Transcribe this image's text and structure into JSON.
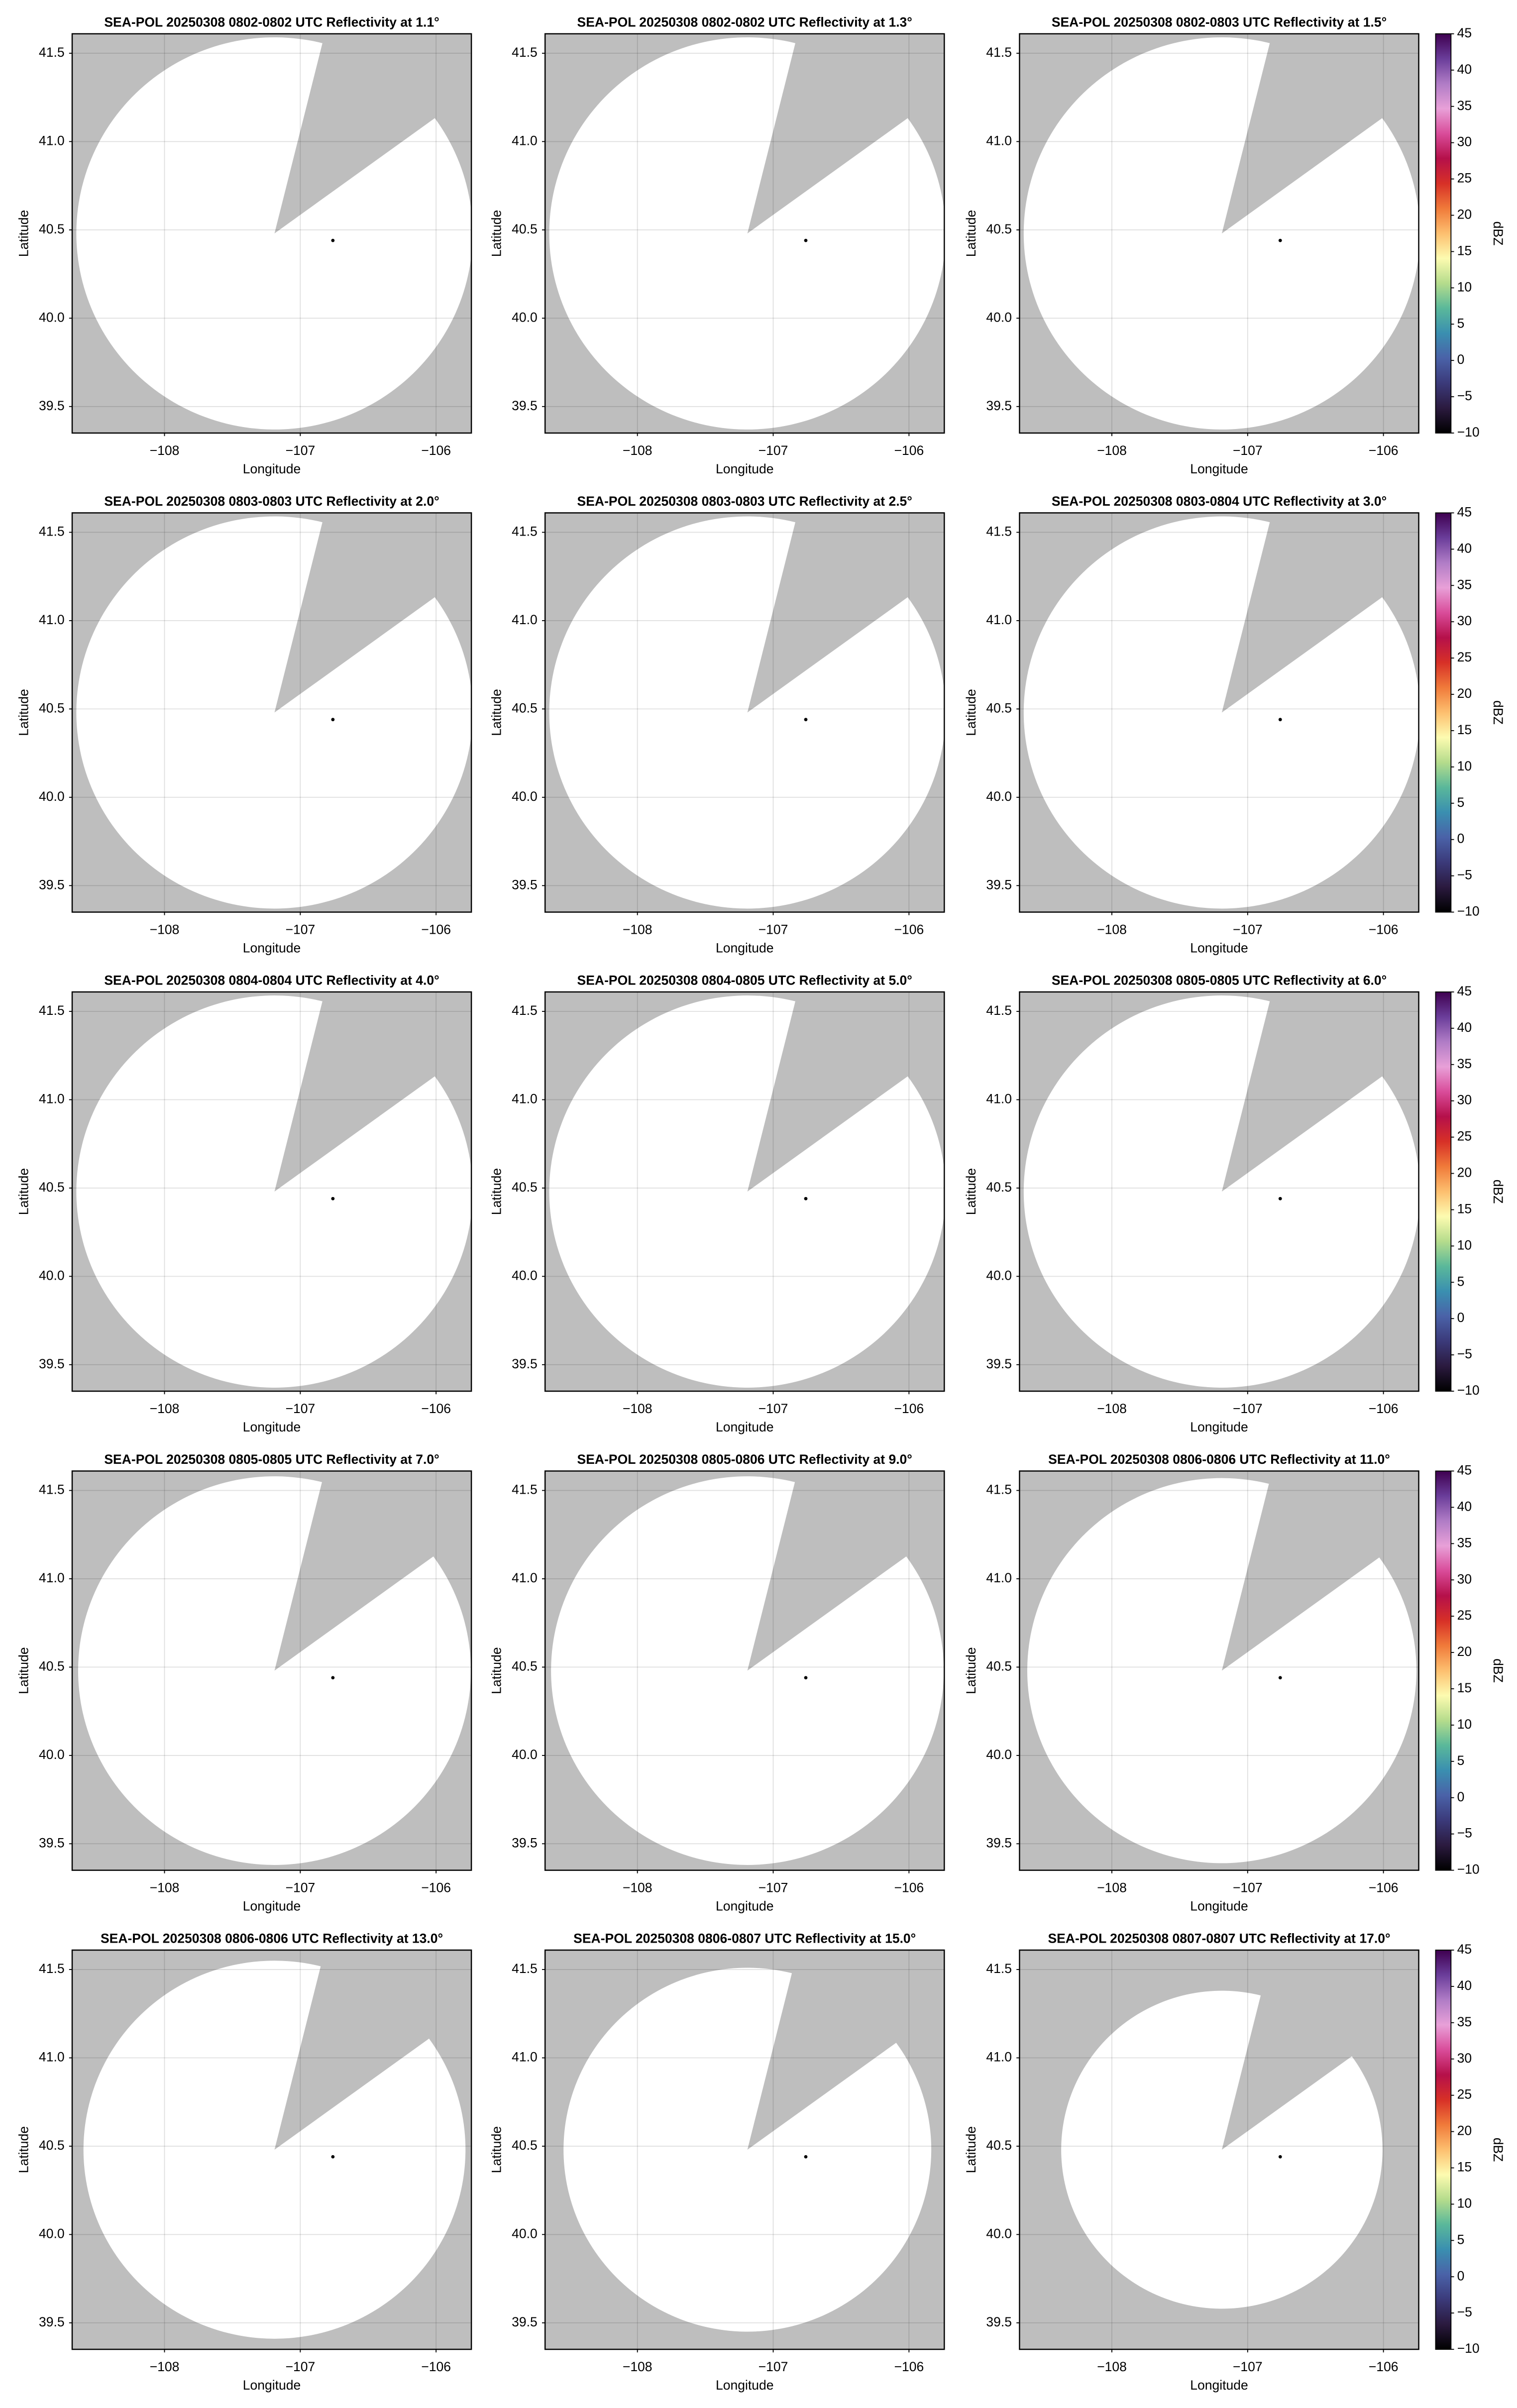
{
  "chart_data": [
    {
      "type": "ppi",
      "title": "SEA-POL 20250308 0802-0802 UTC Reflectivity at 1.1°",
      "xlabel": "Longitude",
      "ylabel": "Latitude",
      "xlim": [
        -108.68,
        -105.74
      ],
      "ylim": [
        39.35,
        41.61
      ],
      "xticks": [
        {
          "value": -108,
          "label": "−108"
        },
        {
          "value": -107,
          "label": "−107"
        },
        {
          "value": -106,
          "label": "−106"
        }
      ],
      "yticks": [
        39.5,
        {
          "value": 40,
          "label": "40.0"
        },
        40.5,
        {
          "value": 41,
          "label": "41.0"
        },
        41.5
      ],
      "grid": true,
      "background": "#bebebe",
      "sweep": {
        "center": [
          -107.19,
          40.48
        ],
        "radius": 1.11,
        "gap": [
          14,
          54
        ]
      },
      "radar": [
        -106.76,
        40.44
      ]
    },
    {
      "type": "ppi",
      "title": "SEA-POL 20250308 0802-0802 UTC Reflectivity at 1.3°",
      "xlabel": "Longitude",
      "ylabel": "Latitude",
      "xlim": [
        -108.68,
        -105.74
      ],
      "ylim": [
        39.35,
        41.61
      ],
      "xticks": [
        {
          "value": -108,
          "label": "−108"
        },
        {
          "value": -107,
          "label": "−107"
        },
        {
          "value": -106,
          "label": "−106"
        }
      ],
      "yticks": [
        39.5,
        {
          "value": 40,
          "label": "40.0"
        },
        40.5,
        {
          "value": 41,
          "label": "41.0"
        },
        41.5
      ],
      "grid": true,
      "background": "#bebebe",
      "sweep": {
        "center": [
          -107.19,
          40.48
        ],
        "radius": 1.11,
        "gap": [
          14,
          54
        ]
      },
      "radar": [
        -106.76,
        40.44
      ]
    },
    {
      "type": "ppi",
      "title": "SEA-POL 20250308 0802-0803 UTC Reflectivity at 1.5°",
      "xlabel": "Longitude",
      "ylabel": "Latitude",
      "xlim": [
        -108.68,
        -105.74
      ],
      "ylim": [
        39.35,
        41.61
      ],
      "xticks": [
        {
          "value": -108,
          "label": "−108"
        },
        {
          "value": -107,
          "label": "−107"
        },
        {
          "value": -106,
          "label": "−106"
        }
      ],
      "yticks": [
        39.5,
        {
          "value": 40,
          "label": "40.0"
        },
        40.5,
        {
          "value": 41,
          "label": "41.0"
        },
        41.5
      ],
      "grid": true,
      "background": "#bebebe",
      "sweep": {
        "center": [
          -107.19,
          40.48
        ],
        "radius": 1.11,
        "gap": [
          14,
          54
        ]
      },
      "radar": [
        -106.76,
        40.44
      ],
      "colorbar": {
        "label": "dBZ",
        "lim": [
          -10,
          45
        ],
        "ticks": [
          {
            "value": -10,
            "label": "−10"
          },
          {
            "value": -5,
            "label": "−5"
          },
          0,
          5,
          10,
          15,
          20,
          25,
          30,
          35,
          40,
          45
        ],
        "colors": [
          "#000000",
          "#2b1a3f",
          "#3b3a7a",
          "#4a62a8",
          "#3a8fb0",
          "#5ab89a",
          "#b5dc8c",
          "#fdfbb0",
          "#fdbf6f",
          "#f07a3a",
          "#d73027",
          "#b5104a",
          "#d94c9a",
          "#e8a0d8",
          "#b07cc6",
          "#6a3d9a",
          "#3f0050"
        ]
      }
    },
    {
      "type": "ppi",
      "title": "SEA-POL 20250308 0803-0803 UTC Reflectivity at 2.0°",
      "xlabel": "Longitude",
      "ylabel": "Latitude",
      "xlim": [
        -108.68,
        -105.74
      ],
      "ylim": [
        39.35,
        41.61
      ],
      "xticks": [
        {
          "value": -108,
          "label": "−108"
        },
        {
          "value": -107,
          "label": "−107"
        },
        {
          "value": -106,
          "label": "−106"
        }
      ],
      "yticks": [
        39.5,
        {
          "value": 40,
          "label": "40.0"
        },
        40.5,
        {
          "value": 41,
          "label": "41.0"
        },
        41.5
      ],
      "grid": true,
      "background": "#bebebe",
      "sweep": {
        "center": [
          -107.19,
          40.48
        ],
        "radius": 1.11,
        "gap": [
          14,
          54
        ]
      },
      "radar": [
        -106.76,
        40.44
      ]
    },
    {
      "type": "ppi",
      "title": "SEA-POL 20250308 0803-0803 UTC Reflectivity at 2.5°",
      "xlabel": "Longitude",
      "ylabel": "Latitude",
      "xlim": [
        -108.68,
        -105.74
      ],
      "ylim": [
        39.35,
        41.61
      ],
      "xticks": [
        {
          "value": -108,
          "label": "−108"
        },
        {
          "value": -107,
          "label": "−107"
        },
        {
          "value": -106,
          "label": "−106"
        }
      ],
      "yticks": [
        39.5,
        {
          "value": 40,
          "label": "40.0"
        },
        40.5,
        {
          "value": 41,
          "label": "41.0"
        },
        41.5
      ],
      "grid": true,
      "background": "#bebebe",
      "sweep": {
        "center": [
          -107.19,
          40.48
        ],
        "radius": 1.11,
        "gap": [
          14,
          54
        ]
      },
      "radar": [
        -106.76,
        40.44
      ]
    },
    {
      "type": "ppi",
      "title": "SEA-POL 20250308 0803-0804 UTC Reflectivity at 3.0°",
      "xlabel": "Longitude",
      "ylabel": "Latitude",
      "xlim": [
        -108.68,
        -105.74
      ],
      "ylim": [
        39.35,
        41.61
      ],
      "xticks": [
        {
          "value": -108,
          "label": "−108"
        },
        {
          "value": -107,
          "label": "−107"
        },
        {
          "value": -106,
          "label": "−106"
        }
      ],
      "yticks": [
        39.5,
        {
          "value": 40,
          "label": "40.0"
        },
        40.5,
        {
          "value": 41,
          "label": "41.0"
        },
        41.5
      ],
      "grid": true,
      "background": "#bebebe",
      "sweep": {
        "center": [
          -107.19,
          40.48
        ],
        "radius": 1.11,
        "gap": [
          14,
          54
        ]
      },
      "radar": [
        -106.76,
        40.44
      ],
      "colorbar": {
        "label": "dBZ",
        "lim": [
          -10,
          45
        ],
        "ticks": [
          {
            "value": -10,
            "label": "−10"
          },
          {
            "value": -5,
            "label": "−5"
          },
          0,
          5,
          10,
          15,
          20,
          25,
          30,
          35,
          40,
          45
        ],
        "colors": [
          "#000000",
          "#2b1a3f",
          "#3b3a7a",
          "#4a62a8",
          "#3a8fb0",
          "#5ab89a",
          "#b5dc8c",
          "#fdfbb0",
          "#fdbf6f",
          "#f07a3a",
          "#d73027",
          "#b5104a",
          "#d94c9a",
          "#e8a0d8",
          "#b07cc6",
          "#6a3d9a",
          "#3f0050"
        ]
      }
    },
    {
      "type": "ppi",
      "title": "SEA-POL 20250308 0804-0804 UTC Reflectivity at 4.0°",
      "xlabel": "Longitude",
      "ylabel": "Latitude",
      "xlim": [
        -108.68,
        -105.74
      ],
      "ylim": [
        39.35,
        41.61
      ],
      "xticks": [
        {
          "value": -108,
          "label": "−108"
        },
        {
          "value": -107,
          "label": "−107"
        },
        {
          "value": -106,
          "label": "−106"
        }
      ],
      "yticks": [
        39.5,
        {
          "value": 40,
          "label": "40.0"
        },
        40.5,
        {
          "value": 41,
          "label": "41.0"
        },
        41.5
      ],
      "grid": true,
      "background": "#bebebe",
      "sweep": {
        "center": [
          -107.19,
          40.48
        ],
        "radius": 1.11,
        "gap": [
          14,
          54
        ]
      },
      "radar": [
        -106.76,
        40.44
      ]
    },
    {
      "type": "ppi",
      "title": "SEA-POL 20250308 0804-0805 UTC Reflectivity at 5.0°",
      "xlabel": "Longitude",
      "ylabel": "Latitude",
      "xlim": [
        -108.68,
        -105.74
      ],
      "ylim": [
        39.35,
        41.61
      ],
      "xticks": [
        {
          "value": -108,
          "label": "−108"
        },
        {
          "value": -107,
          "label": "−107"
        },
        {
          "value": -106,
          "label": "−106"
        }
      ],
      "yticks": [
        39.5,
        {
          "value": 40,
          "label": "40.0"
        },
        40.5,
        {
          "value": 41,
          "label": "41.0"
        },
        41.5
      ],
      "grid": true,
      "background": "#bebebe",
      "sweep": {
        "center": [
          -107.19,
          40.48
        ],
        "radius": 1.11,
        "gap": [
          14,
          54
        ]
      },
      "radar": [
        -106.76,
        40.44
      ]
    },
    {
      "type": "ppi",
      "title": "SEA-POL 20250308 0805-0805 UTC Reflectivity at 6.0°",
      "xlabel": "Longitude",
      "ylabel": "Latitude",
      "xlim": [
        -108.68,
        -105.74
      ],
      "ylim": [
        39.35,
        41.61
      ],
      "xticks": [
        {
          "value": -108,
          "label": "−108"
        },
        {
          "value": -107,
          "label": "−107"
        },
        {
          "value": -106,
          "label": "−106"
        }
      ],
      "yticks": [
        39.5,
        {
          "value": 40,
          "label": "40.0"
        },
        40.5,
        {
          "value": 41,
          "label": "41.0"
        },
        41.5
      ],
      "grid": true,
      "background": "#bebebe",
      "sweep": {
        "center": [
          -107.19,
          40.48
        ],
        "radius": 1.11,
        "gap": [
          14,
          54
        ]
      },
      "radar": [
        -106.76,
        40.44
      ],
      "colorbar": {
        "label": "dBZ",
        "lim": [
          -10,
          45
        ],
        "ticks": [
          {
            "value": -10,
            "label": "−10"
          },
          {
            "value": -5,
            "label": "−5"
          },
          0,
          5,
          10,
          15,
          20,
          25,
          30,
          35,
          40,
          45
        ],
        "colors": [
          "#000000",
          "#2b1a3f",
          "#3b3a7a",
          "#4a62a8",
          "#3a8fb0",
          "#5ab89a",
          "#b5dc8c",
          "#fdfbb0",
          "#fdbf6f",
          "#f07a3a",
          "#d73027",
          "#b5104a",
          "#d94c9a",
          "#e8a0d8",
          "#b07cc6",
          "#6a3d9a",
          "#3f0050"
        ]
      }
    },
    {
      "type": "ppi",
      "title": "SEA-POL 20250308 0805-0805 UTC Reflectivity at 7.0°",
      "xlabel": "Longitude",
      "ylabel": "Latitude",
      "xlim": [
        -108.68,
        -105.74
      ],
      "ylim": [
        39.35,
        41.61
      ],
      "xticks": [
        {
          "value": -108,
          "label": "−108"
        },
        {
          "value": -107,
          "label": "−107"
        },
        {
          "value": -106,
          "label": "−106"
        }
      ],
      "yticks": [
        39.5,
        {
          "value": 40,
          "label": "40.0"
        },
        40.5,
        {
          "value": 41,
          "label": "41.0"
        },
        41.5
      ],
      "grid": true,
      "background": "#bebebe",
      "sweep": {
        "center": [
          -107.19,
          40.48
        ],
        "radius": 1.1,
        "gap": [
          14,
          54
        ]
      },
      "radar": [
        -106.76,
        40.44
      ]
    },
    {
      "type": "ppi",
      "title": "SEA-POL 20250308 0805-0806 UTC Reflectivity at 9.0°",
      "xlabel": "Longitude",
      "ylabel": "Latitude",
      "xlim": [
        -108.68,
        -105.74
      ],
      "ylim": [
        39.35,
        41.61
      ],
      "xticks": [
        {
          "value": -108,
          "label": "−108"
        },
        {
          "value": -107,
          "label": "−107"
        },
        {
          "value": -106,
          "label": "−106"
        }
      ],
      "yticks": [
        39.5,
        {
          "value": 40,
          "label": "40.0"
        },
        40.5,
        {
          "value": 41,
          "label": "41.0"
        },
        41.5
      ],
      "grid": true,
      "background": "#bebebe",
      "sweep": {
        "center": [
          -107.19,
          40.48
        ],
        "radius": 1.1,
        "gap": [
          14,
          54
        ]
      },
      "radar": [
        -106.76,
        40.44
      ]
    },
    {
      "type": "ppi",
      "title": "SEA-POL 20250308 0806-0806 UTC Reflectivity at 11.0°",
      "xlabel": "Longitude",
      "ylabel": "Latitude",
      "xlim": [
        -108.68,
        -105.74
      ],
      "ylim": [
        39.35,
        41.61
      ],
      "xticks": [
        {
          "value": -108,
          "label": "−108"
        },
        {
          "value": -107,
          "label": "−107"
        },
        {
          "value": -106,
          "label": "−106"
        }
      ],
      "yticks": [
        39.5,
        {
          "value": 40,
          "label": "40.0"
        },
        40.5,
        {
          "value": 41,
          "label": "41.0"
        },
        41.5
      ],
      "grid": true,
      "background": "#bebebe",
      "sweep": {
        "center": [
          -107.19,
          40.48
        ],
        "radius": 1.09,
        "gap": [
          14,
          54
        ]
      },
      "radar": [
        -106.76,
        40.44
      ],
      "colorbar": {
        "label": "dBZ",
        "lim": [
          -10,
          45
        ],
        "ticks": [
          {
            "value": -10,
            "label": "−10"
          },
          {
            "value": -5,
            "label": "−5"
          },
          0,
          5,
          10,
          15,
          20,
          25,
          30,
          35,
          40,
          45
        ],
        "colors": [
          "#000000",
          "#2b1a3f",
          "#3b3a7a",
          "#4a62a8",
          "#3a8fb0",
          "#5ab89a",
          "#b5dc8c",
          "#fdfbb0",
          "#fdbf6f",
          "#f07a3a",
          "#d73027",
          "#b5104a",
          "#d94c9a",
          "#e8a0d8",
          "#b07cc6",
          "#6a3d9a",
          "#3f0050"
        ]
      }
    },
    {
      "type": "ppi",
      "title": "SEA-POL 20250308 0806-0806 UTC Reflectivity at 13.0°",
      "xlabel": "Longitude",
      "ylabel": "Latitude",
      "xlim": [
        -108.68,
        -105.74
      ],
      "ylim": [
        39.35,
        41.61
      ],
      "xticks": [
        {
          "value": -108,
          "label": "−108"
        },
        {
          "value": -107,
          "label": "−107"
        },
        {
          "value": -106,
          "label": "−106"
        }
      ],
      "yticks": [
        39.5,
        {
          "value": 40,
          "label": "40.0"
        },
        40.5,
        {
          "value": 41,
          "label": "41.0"
        },
        41.5
      ],
      "grid": true,
      "background": "#bebebe",
      "sweep": {
        "center": [
          -107.19,
          40.48
        ],
        "radius": 1.07,
        "gap": [
          14,
          54
        ]
      },
      "radar": [
        -106.76,
        40.44
      ]
    },
    {
      "type": "ppi",
      "title": "SEA-POL 20250308 0806-0807 UTC Reflectivity at 15.0°",
      "xlabel": "Longitude",
      "ylabel": "Latitude",
      "xlim": [
        -108.68,
        -105.74
      ],
      "ylim": [
        39.35,
        41.61
      ],
      "xticks": [
        {
          "value": -108,
          "label": "−108"
        },
        {
          "value": -107,
          "label": "−107"
        },
        {
          "value": -106,
          "label": "−106"
        }
      ],
      "yticks": [
        39.5,
        {
          "value": 40,
          "label": "40.0"
        },
        40.5,
        {
          "value": 41,
          "label": "41.0"
        },
        41.5
      ],
      "grid": true,
      "background": "#bebebe",
      "sweep": {
        "center": [
          -107.19,
          40.48
        ],
        "radius": 1.03,
        "gap": [
          14,
          54
        ]
      },
      "radar": [
        -106.76,
        40.44
      ]
    },
    {
      "type": "ppi",
      "title": "SEA-POL 20250308 0807-0807 UTC Reflectivity at 17.0°",
      "xlabel": "Longitude",
      "ylabel": "Latitude",
      "xlim": [
        -108.68,
        -105.74
      ],
      "ylim": [
        39.35,
        41.61
      ],
      "xticks": [
        {
          "value": -108,
          "label": "−108"
        },
        {
          "value": -107,
          "label": "−107"
        },
        {
          "value": -106,
          "label": "−106"
        }
      ],
      "yticks": [
        39.5,
        {
          "value": 40,
          "label": "40.0"
        },
        40.5,
        {
          "value": 41,
          "label": "41.0"
        },
        41.5
      ],
      "grid": true,
      "background": "#bebebe",
      "sweep": {
        "center": [
          -107.19,
          40.48
        ],
        "radius": 0.9,
        "gap": [
          14,
          54
        ]
      },
      "radar": [
        -106.76,
        40.44
      ],
      "colorbar": {
        "label": "dBZ",
        "lim": [
          -10,
          45
        ],
        "ticks": [
          {
            "value": -10,
            "label": "−10"
          },
          {
            "value": -5,
            "label": "−5"
          },
          0,
          5,
          10,
          15,
          20,
          25,
          30,
          35,
          40,
          45
        ],
        "colors": [
          "#000000",
          "#2b1a3f",
          "#3b3a7a",
          "#4a62a8",
          "#3a8fb0",
          "#5ab89a",
          "#b5dc8c",
          "#fdfbb0",
          "#fdbf6f",
          "#f07a3a",
          "#d73027",
          "#b5104a",
          "#d94c9a",
          "#e8a0d8",
          "#b07cc6",
          "#6a3d9a",
          "#3f0050"
        ]
      }
    }
  ]
}
